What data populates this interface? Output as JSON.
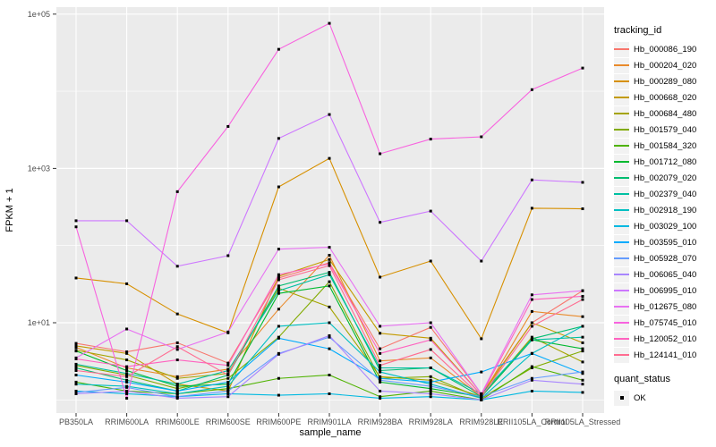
{
  "figure": {
    "panel_bg": "#EBEBEB",
    "grid_color": "#FFFFFF",
    "tick_label_color": "#4D4D4D",
    "axis_title_color": "#000000",
    "marker_color": "#000000",
    "marker_shape": "black-square"
  },
  "legend": {
    "tracking_title": "tracking_id",
    "quant_title": "quant_status",
    "quant_items": [
      {
        "label": "OK",
        "swatch": "black-square"
      }
    ]
  },
  "chart_data": {
    "type": "line",
    "title": "",
    "xlabel": "sample_name",
    "ylabel": "FPKM + 1",
    "y_scale": "log10",
    "grid": "on",
    "legend_position": "right",
    "y_ticks": [
      10,
      1000,
      100000
    ],
    "y_tick_labels": [
      "1e+01",
      "1e+03",
      "1e+05"
    ],
    "y_gridline_decades_minor": [
      0,
      2,
      4
    ],
    "y_gridline_decades_major": [
      1,
      3,
      5
    ],
    "ylim_log10": [
      -0.17,
      5.1
    ],
    "categories": [
      "PB350LA",
      "RRIM600LA",
      "RRIM600LE",
      "RRIM600SE",
      "RRIM600PE",
      "RRIM901LA",
      "RRIM928BA",
      "RRIM928LA",
      "RRIM928LE",
      "RRII105LA_Control",
      "RRII105LA_Stressed"
    ],
    "series": [
      {
        "name": "Hb_000086_190",
        "color": "#F8766D",
        "values": [
          5.4,
          4.2,
          5.5,
          3.0,
          38,
          60,
          4.6,
          8.7,
          1.2,
          10,
          26
        ]
      },
      {
        "name": "Hb_000204_020",
        "color": "#E98A2B",
        "values": [
          4.8,
          2.6,
          2.0,
          2.5,
          15,
          75,
          3.2,
          3.5,
          1.1,
          14,
          12
        ]
      },
      {
        "name": "Hb_000289_080",
        "color": "#D79000",
        "values": [
          38,
          32,
          13,
          7.4,
          577,
          1350,
          39,
          63,
          6.2,
          305,
          300
        ]
      },
      {
        "name": "Hb_000668_020",
        "color": "#C39B00",
        "values": [
          5.0,
          4.0,
          1.6,
          1.3,
          40,
          66,
          7.3,
          6.3,
          1.15,
          10,
          5.5
        ]
      },
      {
        "name": "Hb_000684_480",
        "color": "#A5A400",
        "values": [
          4.4,
          3.3,
          1.9,
          2.2,
          28,
          16,
          2.0,
          1.8,
          1.1,
          6.5,
          3.1
        ]
      },
      {
        "name": "Hb_001579_040",
        "color": "#82AB00",
        "values": [
          2.8,
          2.1,
          1.4,
          1.9,
          6.5,
          34,
          1.9,
          2.0,
          1.05,
          2.6,
          4.3
        ]
      },
      {
        "name": "Hb_001584_320",
        "color": "#4FB300",
        "values": [
          1.7,
          1.3,
          1.2,
          1.4,
          1.9,
          2.1,
          1.1,
          1.3,
          1.0,
          2.7,
          1.8
        ]
      },
      {
        "name": "Hb_001712_080",
        "color": "#00B92F",
        "values": [
          4.3,
          2.4,
          1.5,
          1.6,
          24,
          30,
          1.7,
          1.4,
          1.1,
          6.0,
          4.6
        ]
      },
      {
        "name": "Hb_002079_020",
        "color": "#00BD71",
        "values": [
          2.6,
          1.8,
          1.3,
          2.1,
          30,
          45,
          2.4,
          2.6,
          1.1,
          6.2,
          9.0
        ]
      },
      {
        "name": "Hb_002379_040",
        "color": "#00C0A2",
        "values": [
          2.9,
          2.2,
          1.6,
          2.4,
          26,
          42,
          2.6,
          2.6,
          1.2,
          6.0,
          6.5
        ]
      },
      {
        "name": "Hb_002918_190",
        "color": "#00BFC2",
        "values": [
          1.6,
          1.5,
          1.2,
          1.5,
          9.0,
          10,
          2.3,
          1.6,
          1.05,
          4.0,
          9.0
        ]
      },
      {
        "name": "Hb_003029_100",
        "color": "#00B9E1",
        "values": [
          1.3,
          1.2,
          1.1,
          1.2,
          1.15,
          1.2,
          1.05,
          1.1,
          1.0,
          1.3,
          1.25
        ]
      },
      {
        "name": "Hb_003595_010",
        "color": "#00ABFD",
        "values": [
          2.1,
          1.7,
          1.3,
          1.7,
          6.3,
          4.6,
          1.9,
          1.7,
          2.3,
          4.0,
          2.2
        ]
      },
      {
        "name": "Hb_005928_070",
        "color": "#659CFF",
        "values": [
          1.25,
          1.45,
          1.1,
          1.3,
          4.0,
          6.5,
          1.8,
          1.5,
          1.1,
          1.9,
          2.3
        ]
      },
      {
        "name": "Hb_006065_040",
        "color": "#A886FF",
        "values": [
          1.2,
          1.3,
          1.05,
          1.1,
          3.9,
          6.8,
          1.3,
          1.2,
          1.0,
          1.8,
          1.6
        ]
      },
      {
        "name": "Hb_006995_010",
        "color": "#CD77FF",
        "values": [
          210,
          210,
          54,
          74,
          2450,
          5000,
          200,
          280,
          63,
          710,
          660
        ]
      },
      {
        "name": "Hb_012675_080",
        "color": "#E871F2",
        "values": [
          3.5,
          8.3,
          4.5,
          7.6,
          90,
          95,
          9.0,
          10,
          1.2,
          23,
          26
        ]
      },
      {
        "name": "Hb_075745_010",
        "color": "#F863DF",
        "values": [
          175,
          1.05,
          500,
          3500,
          35000,
          76000,
          1550,
          2400,
          2570,
          10500,
          20000
        ]
      },
      {
        "name": "Hb_120052_010",
        "color": "#FF62BF",
        "values": [
          3.4,
          2.7,
          3.3,
          2.8,
          42,
          58,
          4.0,
          6.0,
          1.15,
          20,
          22
        ]
      },
      {
        "name": "Hb_124141_010",
        "color": "#FF6C91",
        "values": [
          2.4,
          2.0,
          4.9,
          2.1,
          36,
          55,
          2.8,
          4.5,
          1.1,
          9.0,
          20
        ]
      }
    ]
  }
}
